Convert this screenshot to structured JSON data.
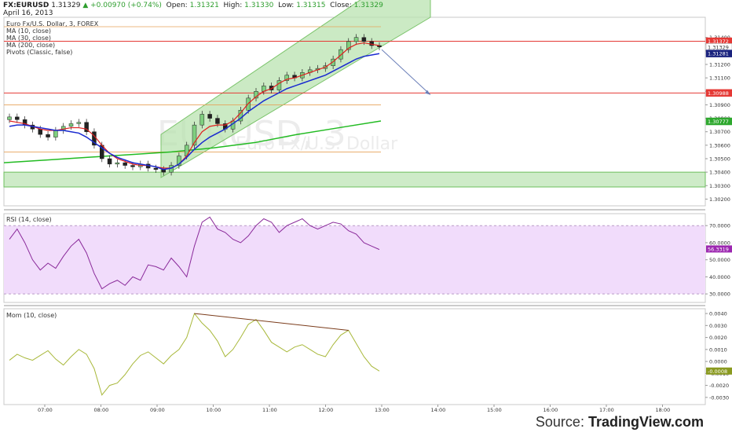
{
  "header": {
    "symbol": "FX:EURUSD",
    "last": "1.31329",
    "arrow": "▲",
    "change": "+0.00970 (+0.74%)",
    "open_label": "Open:",
    "open": "1.31321",
    "high_label": "High:",
    "high": "1.31330",
    "low_label": "Low:",
    "low": "1.31315",
    "close_label": "Close:",
    "close": "1.31329",
    "date": "April 16, 2013"
  },
  "main_legend": {
    "title": "Euro Fx/U.S. Dollar, 3, FOREX",
    "ma10": "MA (10, close)",
    "ma30": "MA (30, close)",
    "ma200": "MA (200, close)",
    "pivots": "Pivots (Classic, false)"
  },
  "watermark": {
    "line1": "EURUSD, 3",
    "line2": "Euro Fx/U.S. Dollar"
  },
  "rsi_legend": "RSI (14, close)",
  "mom_legend": "Mom (10, close)",
  "source": {
    "prefix": "Source: ",
    "brand": "TradingView.com"
  },
  "colors": {
    "candle_up": "#2e8b2e",
    "candle_down": "#8b1a1a",
    "ma10": "#e02020",
    "ma30": "#1a2ad0",
    "ma200": "#22bb22",
    "channel_fill": "#b9e3b0",
    "rsi_fill": "#f1dcfb",
    "rsi_line": "#8a2a9a",
    "mom_line": "#a8b83a",
    "accent_red_label": "#e53935",
    "accent_blue_label": "#1a237e",
    "accent_green_label": "#2ea82e",
    "accent_purple_label": "#9c27b0",
    "accent_olive_label": "#8a9a20"
  },
  "chart_data": [
    {
      "type": "line",
      "panel": "price",
      "x_ticks": [
        "07:00",
        "08:00",
        "09:00",
        "10:00",
        "11:00",
        "12:00",
        "13:00",
        "14:00",
        "15:00",
        "16:00",
        "17:00",
        "18:00"
      ],
      "y_ticks": [
        "1.31400",
        "1.31300",
        "1.31200",
        "1.31100",
        "1.31000",
        "1.30900",
        "1.30800",
        "1.30700",
        "1.30600",
        "1.30500",
        "1.30400",
        "1.30300",
        "1.30200"
      ],
      "ylim": [
        1.3015,
        1.3155
      ],
      "price_labels": [
        {
          "value": 1.31372,
          "text": "1.31372",
          "color": "#e53935"
        },
        {
          "value": 1.31329,
          "text": "1.31329",
          "color": "#ffffff"
        },
        {
          "value": 1.31281,
          "text": "1.31281",
          "color": "#1a237e"
        },
        {
          "value": 1.30988,
          "text": "1.30988",
          "color": "#e53935"
        },
        {
          "value": 1.30777,
          "text": "1.30777",
          "color": "#2ea82e"
        }
      ],
      "close_series": [
        1.3081,
        1.3079,
        1.3075,
        1.3072,
        1.3068,
        1.3066,
        1.3071,
        1.3074,
        1.3076,
        1.3077,
        1.307,
        1.306,
        1.305,
        1.3046,
        1.3047,
        1.3045,
        1.3044,
        1.3046,
        1.3043,
        1.3042,
        1.304,
        1.3045,
        1.3052,
        1.306,
        1.3075,
        1.3083,
        1.308,
        1.3076,
        1.3072,
        1.3078,
        1.3086,
        1.3095,
        1.31,
        1.3104,
        1.3101,
        1.3108,
        1.3112,
        1.311,
        1.3114,
        1.3116,
        1.3117,
        1.3119,
        1.3124,
        1.3131,
        1.3137,
        1.314,
        1.3137,
        1.3134,
        1.3133
      ],
      "ma10": [
        1.3078,
        1.3077,
        1.3076,
        1.3074,
        1.3072,
        1.3071,
        1.3071,
        1.3072,
        1.3073,
        1.3073,
        1.3072,
        1.3067,
        1.306,
        1.3054,
        1.305,
        1.3048,
        1.3046,
        1.3045,
        1.3045,
        1.3044,
        1.3043,
        1.3043,
        1.3046,
        1.3052,
        1.3062,
        1.307,
        1.3074,
        1.3075,
        1.3075,
        1.3078,
        1.3084,
        1.3091,
        1.3096,
        1.31,
        1.3102,
        1.3106,
        1.3109,
        1.311,
        1.3112,
        1.3114,
        1.3116,
        1.3118,
        1.3122,
        1.3127,
        1.3132,
        1.3135,
        1.3136,
        1.3135,
        1.3134
      ],
      "ma30": [
        1.3074,
        1.3075,
        1.3075,
        1.3074,
        1.3073,
        1.3072,
        1.3071,
        1.3071,
        1.307,
        1.3069,
        1.3066,
        1.3062,
        1.3058,
        1.3054,
        1.3051,
        1.3049,
        1.3047,
        1.3046,
        1.3045,
        1.3044,
        1.3042,
        1.3043,
        1.3046,
        1.3051,
        1.3057,
        1.3062,
        1.3066,
        1.3069,
        1.3072,
        1.3076,
        1.308,
        1.3085,
        1.3089,
        1.3093,
        1.3096,
        1.3099,
        1.3102,
        1.3104,
        1.3106,
        1.3108,
        1.311,
        1.3112,
        1.3115,
        1.3118,
        1.3121,
        1.3124,
        1.3126,
        1.3127,
        1.3128
      ],
      "ma200": [
        1.3047,
        1.3049,
        1.3051,
        1.3053,
        1.3055,
        1.3058,
        1.3062,
        1.3068,
        1.3073,
        1.3078
      ]
    },
    {
      "type": "line",
      "panel": "rsi",
      "y_ticks": [
        "70.0000",
        "60.0000",
        "50.0000",
        "40.0000",
        "30.0000"
      ],
      "ylim": [
        25,
        77
      ],
      "last_label": "56.3319",
      "band": [
        30,
        70
      ],
      "values": [
        62,
        68,
        60,
        50,
        44,
        48,
        45,
        52,
        58,
        62,
        54,
        42,
        33,
        36,
        38,
        35,
        40,
        38,
        47,
        46,
        44,
        51,
        46,
        40,
        58,
        72,
        75,
        68,
        66,
        62,
        60,
        64,
        70,
        74,
        72,
        66,
        70,
        72,
        74,
        70,
        68,
        70,
        72,
        71,
        67,
        65,
        60,
        58,
        56
      ]
    },
    {
      "type": "line",
      "panel": "momentum",
      "y_ticks": [
        "0.0040",
        "0.0030",
        "0.0020",
        "0.0010",
        "0.0000",
        "-0.0010",
        "-0.0020",
        "-0.0030"
      ],
      "ylim": [
        -0.0036,
        0.0044
      ],
      "last_label": "-0.0008",
      "values": [
        0.0001,
        0.0006,
        0.0003,
        0.0001,
        0.0005,
        0.0009,
        0.0002,
        -0.0003,
        0.0004,
        0.001,
        0.0006,
        -0.0006,
        -0.0028,
        -0.002,
        -0.0018,
        -0.0011,
        -0.0002,
        0.0005,
        0.0008,
        0.0003,
        -0.0002,
        0.0005,
        0.001,
        0.002,
        0.004,
        0.0032,
        0.0026,
        0.0017,
        0.0004,
        0.001,
        0.002,
        0.0031,
        0.0035,
        0.0026,
        0.0016,
        0.0012,
        0.0008,
        0.0012,
        0.0014,
        0.001,
        0.0006,
        0.0004,
        0.0014,
        0.0022,
        0.0026,
        0.0015,
        0.0004,
        -0.0004,
        -0.0008
      ]
    }
  ]
}
